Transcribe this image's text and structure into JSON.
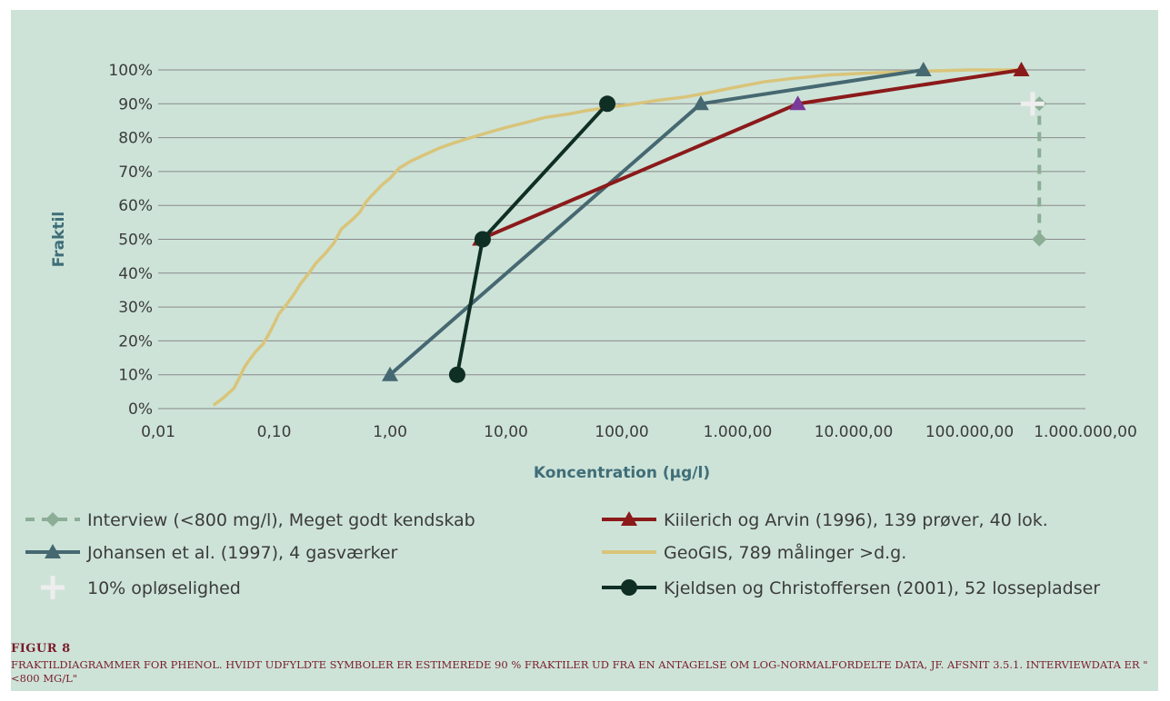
{
  "chart_data": {
    "type": "line",
    "xscale": "log",
    "xlabel": "Koncentration (µg/l)",
    "ylabel": "Fraktil",
    "xlim": [
      0.01,
      1000000
    ],
    "ylim": [
      0,
      1
    ],
    "grid": true,
    "legend_position": "bottom",
    "x_tick_values": [
      0.01,
      0.1,
      1,
      10,
      100,
      1000,
      10000,
      100000,
      1000000
    ],
    "x_tick_labels": [
      "0,01",
      "0,10",
      "1,00",
      "10,00",
      "100,00",
      "1.000,00",
      "10.000,00",
      "100.000,00",
      "1.000.000,00"
    ],
    "y_tick_values": [
      0,
      0.1,
      0.2,
      0.3,
      0.4,
      0.5,
      0.6,
      0.7,
      0.8,
      0.9,
      1
    ],
    "y_tick_labels": [
      "0%",
      "10%",
      "20%",
      "30%",
      "40%",
      "50%",
      "60%",
      "70%",
      "80%",
      "90%",
      "100%"
    ],
    "series": [
      {
        "name": "GeoGIS, 789 målinger >d.g.",
        "color": "#d9c47a",
        "marker": "none",
        "points": [
          [
            0.03,
            0.01
          ],
          [
            0.036,
            0.03
          ],
          [
            0.045,
            0.06
          ],
          [
            0.05,
            0.09
          ],
          [
            0.055,
            0.12
          ],
          [
            0.06,
            0.14
          ],
          [
            0.07,
            0.17
          ],
          [
            0.08,
            0.19
          ],
          [
            0.09,
            0.22
          ],
          [
            0.1,
            0.25
          ],
          [
            0.11,
            0.28
          ],
          [
            0.13,
            0.31
          ],
          [
            0.15,
            0.34
          ],
          [
            0.17,
            0.37
          ],
          [
            0.2,
            0.4
          ],
          [
            0.23,
            0.43
          ],
          [
            0.28,
            0.46
          ],
          [
            0.33,
            0.49
          ],
          [
            0.38,
            0.53
          ],
          [
            0.48,
            0.56
          ],
          [
            0.55,
            0.58
          ],
          [
            0.62,
            0.61
          ],
          [
            0.7,
            0.63
          ],
          [
            0.85,
            0.66
          ],
          [
            1.0,
            0.68
          ],
          [
            1.2,
            0.71
          ],
          [
            1.5,
            0.73
          ],
          [
            2.0,
            0.75
          ],
          [
            2.7,
            0.77
          ],
          [
            3.6,
            0.785
          ],
          [
            5.0,
            0.8
          ],
          [
            7.0,
            0.815
          ],
          [
            10,
            0.83
          ],
          [
            15,
            0.845
          ],
          [
            22,
            0.86
          ],
          [
            35,
            0.87
          ],
          [
            50,
            0.88
          ],
          [
            80,
            0.89
          ],
          [
            130,
            0.9
          ],
          [
            200,
            0.91
          ],
          [
            350,
            0.92
          ],
          [
            600,
            0.935
          ],
          [
            1000,
            0.95
          ],
          [
            1700,
            0.965
          ],
          [
            3000,
            0.975
          ],
          [
            6000,
            0.985
          ],
          [
            12000,
            0.99
          ],
          [
            30000,
            0.995
          ],
          [
            100000,
            1.0
          ],
          [
            300000,
            1.0
          ]
        ]
      },
      {
        "name": "Kiilerich og Arvin (1996), 139 prøver, 40 lok.",
        "color": "#8b1a1a",
        "marker": "triangle",
        "points": [
          [
            6,
            0.5
          ],
          [
            3300,
            0.9
          ],
          [
            280000,
            1.0
          ]
        ],
        "estimated_point_index": 1,
        "estimated_color": "#7a3a9a"
      },
      {
        "name": "Johansen et al. (1997), 4 gasværker",
        "color": "#466871",
        "marker": "triangle",
        "points": [
          [
            1,
            0.1
          ],
          [
            480,
            0.9
          ],
          [
            40000,
            1.0
          ]
        ]
      },
      {
        "name": "Kjeldsen og Christoffersen (2001), 52 lossepladser",
        "color": "#0f2e24",
        "marker": "circle",
        "points": [
          [
            3.8,
            0.1
          ],
          [
            6.3,
            0.5
          ],
          [
            75,
            0.9
          ]
        ]
      },
      {
        "name": "Interview (<800 mg/l), Meget godt kendskab",
        "color": "#8cae96",
        "marker": "diamond",
        "dashed": true,
        "points": [
          [
            400000,
            0.5
          ],
          [
            400000,
            0.9
          ]
        ]
      },
      {
        "name": "10% opløselighed",
        "color": "#eeeeee",
        "marker": "plus",
        "points": [
          [
            350000,
            0.9
          ]
        ]
      }
    ],
    "legend": [
      {
        "label": "Interview (<800 mg/l), Meget godt kendskab",
        "series": 4
      },
      {
        "label": "Kiilerich og Arvin (1996), 139 prøver, 40 lok.",
        "series": 1
      },
      {
        "label": "Johansen et al. (1997), 4 gasværker",
        "series": 2
      },
      {
        "label": "GeoGIS, 789 målinger >d.g.",
        "series": 0
      },
      {
        "label": "10% opløselighed",
        "series": 5
      },
      {
        "label": "Kjeldsen og Christoffersen (2001), 52 lossepladser",
        "series": 3
      }
    ]
  },
  "figure": {
    "label": "FIGUR 8",
    "caption": "FRAKTILDIAGRAMMER FOR PHENOL. HVIDT UDFYLDTE SYMBOLER ER ESTIMEREDE 90 % FRAKTILER UD FRA EN ANTAGELSE OM LOG-NORMALFORDELTE DATA, JF. AFSNIT 3.5.1. INTERVIEWDATA ER \"<800 MG/L\""
  },
  "colors": {
    "background": "#cde3d8",
    "gridline": "#8a8a8a",
    "axis_title": "#3f6e78",
    "caption": "#7a1c2a"
  }
}
